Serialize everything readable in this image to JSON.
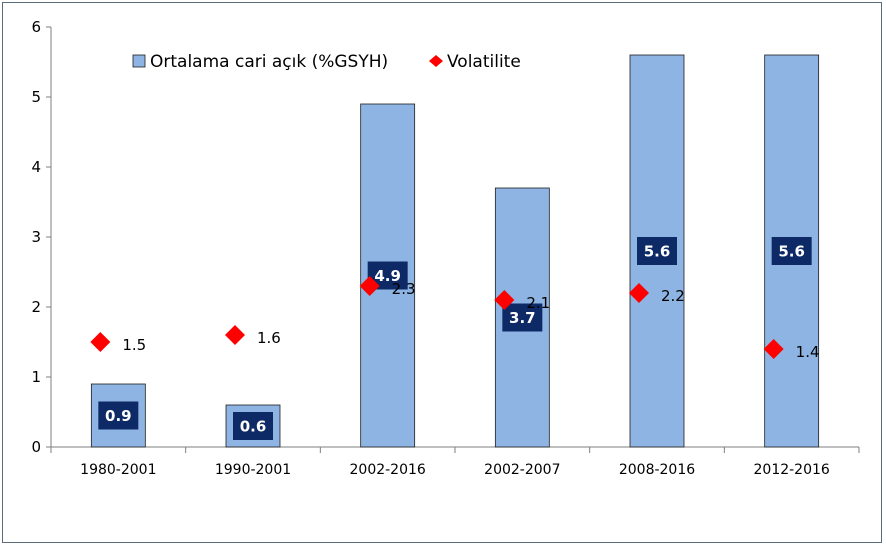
{
  "chart_data": {
    "type": "bar",
    "categories": [
      "1980-2001",
      "1990-2001",
      "2002-2016",
      "2002-2007",
      "2008-2016",
      "2012-2016"
    ],
    "series": [
      {
        "name": "Ortalama cari açık (%GSYH)",
        "type": "bar",
        "values": [
          0.9,
          0.6,
          4.9,
          3.7,
          5.6,
          5.6
        ],
        "value_labels": [
          "0.9",
          "0.6",
          "4.9",
          "3.7",
          "5.6",
          "5.6"
        ],
        "color": "#8eb4e3",
        "border_color": "#1f1f1f",
        "label_box_color": "#0d2a66"
      },
      {
        "name": "Volatilite",
        "type": "scatter",
        "marker": "diamond",
        "values": [
          1.5,
          1.6,
          2.3,
          2.1,
          2.2,
          1.4
        ],
        "value_labels": [
          "1.5",
          "1.6",
          "2.3",
          "2.1",
          "2.2",
          "1.4"
        ],
        "color": "#ff0000"
      }
    ],
    "yticks": [
      "0",
      "1",
      "2",
      "3",
      "4",
      "5",
      "6"
    ],
    "ylim": [
      0,
      6
    ],
    "grid": false,
    "legend_position": "top"
  }
}
